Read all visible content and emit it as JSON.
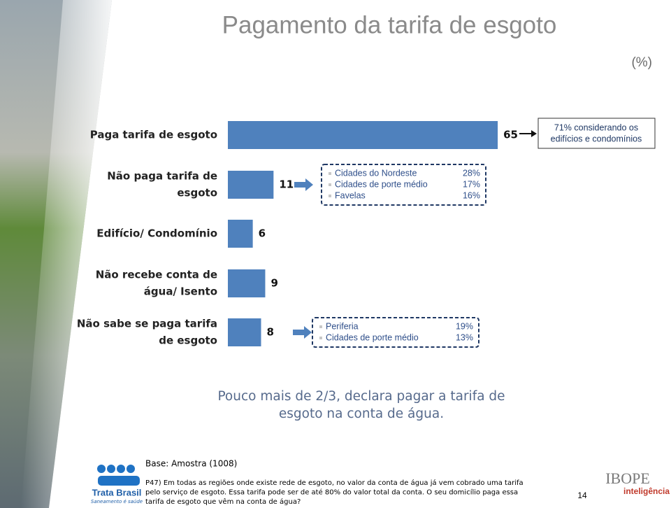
{
  "chart_data": {
    "type": "bar",
    "orientation": "horizontal",
    "title": "Pagamento da tarifa de esgoto",
    "unit_label": "(%)",
    "categories": [
      [
        "Paga tarifa de esgoto"
      ],
      [
        "Não paga tarifa de",
        "esgoto"
      ],
      [
        "Edifício/ Condomínio"
      ],
      [
        "Não recebe conta de",
        "água/ Isento"
      ],
      [
        "Não sabe se paga tarifa",
        "de esgoto"
      ]
    ],
    "values": [
      65,
      11,
      6,
      9,
      8
    ],
    "color": "#4f81bd",
    "note": [
      "71% considerando os",
      "edifícios e condomínios"
    ],
    "callouts": [
      {
        "labels": [
          "Cidades do Nordeste",
          "Cidades de porte médio",
          "Favelas"
        ],
        "values": [
          28,
          17,
          16
        ],
        "value_labels": [
          "28%",
          "17%",
          "16%"
        ]
      },
      {
        "labels": [
          "Periferia",
          "Cidades de porte médio"
        ],
        "values": [
          19,
          13
        ],
        "value_labels": [
          "19%",
          "13%"
        ]
      }
    ]
  },
  "conclusion": [
    "Pouco mais de 2/3, declara  pagar a tarifa de",
    "esgoto na conta de água."
  ],
  "footer": {
    "base": "Base: Amostra (1008)",
    "question": [
      "P47) Em todas as regiões onde existe rede de esgoto, no valor da conta de água já vem cobrado uma tarifa",
      "pelo serviço de esgoto. Essa tarifa pode ser de até 80% do valor total da conta. O seu domicílio paga essa",
      "tarifa de esgoto que vêm na conta de água?"
    ],
    "logo_left": "Trata Brasil",
    "logo_left_tagline": "Saneamento é saúde",
    "logo_right": "IBOPE",
    "logo_right_tagline": "inteligência",
    "page_number": "14"
  }
}
